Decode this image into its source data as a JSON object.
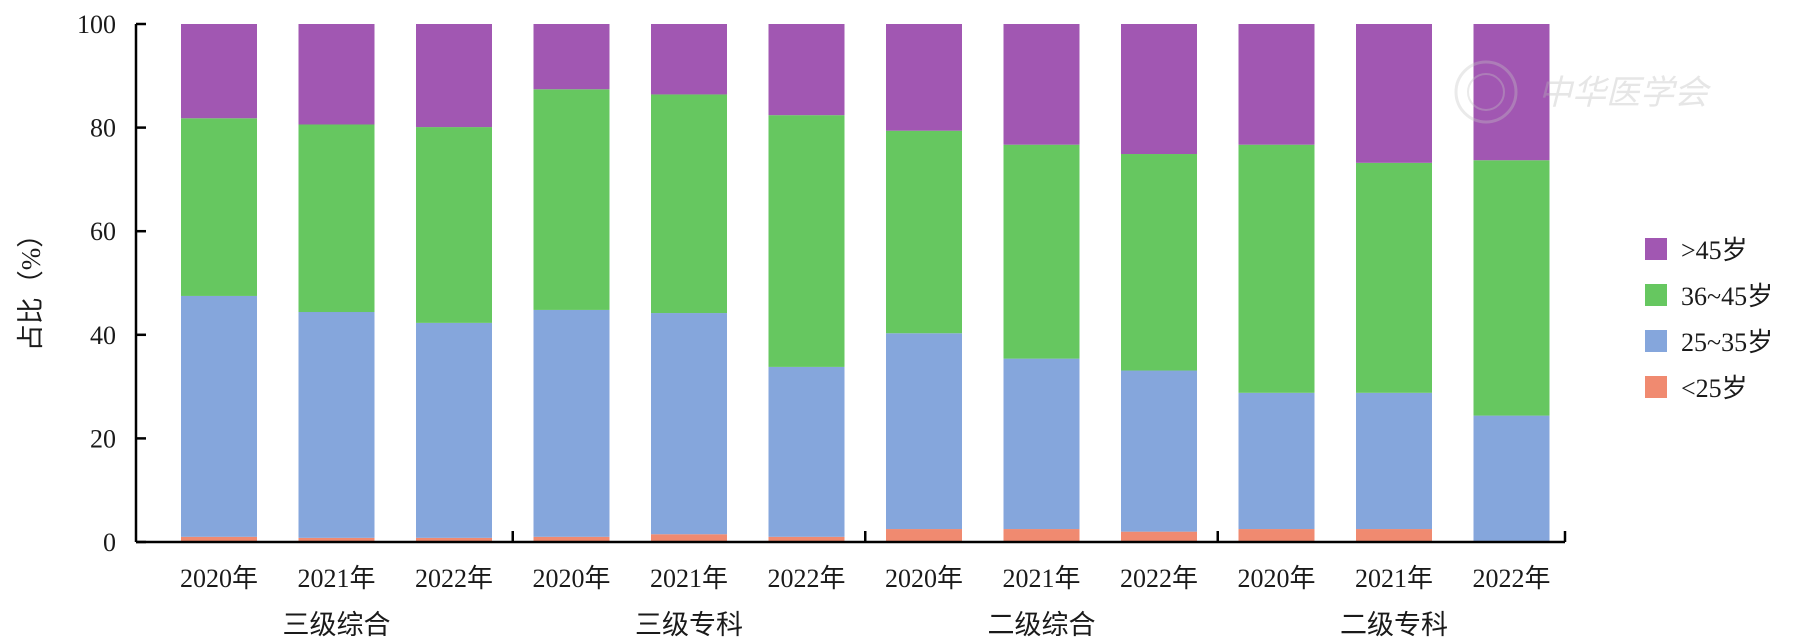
{
  "chart_data": {
    "type": "bar",
    "stacked": true,
    "ylabel": "占比（%）",
    "xlabel": "",
    "ylim": [
      0,
      100
    ],
    "yticks": [
      0,
      20,
      40,
      60,
      80,
      100
    ],
    "legend_position": "right",
    "categories": [
      "2020年",
      "2021年",
      "2022年",
      "2020年",
      "2021年",
      "2022年",
      "2020年",
      "2021年",
      "2022年",
      "2020年",
      "2021年",
      "2022年"
    ],
    "groups": [
      {
        "label": "三级综合",
        "size": 3
      },
      {
        "label": "三级专科",
        "size": 3
      },
      {
        "label": "二级综合",
        "size": 3
      },
      {
        "label": "二级专科",
        "size": 3
      }
    ],
    "series": [
      {
        "name": "<25岁",
        "color": "#F08A70",
        "values": [
          1.0,
          0.8,
          0.8,
          1.0,
          1.5,
          1.0,
          2.5,
          2.5,
          2.0,
          2.5,
          2.5,
          0.2
        ]
      },
      {
        "name": "25~35岁",
        "color": "#85A6DC",
        "values": [
          46.5,
          43.6,
          41.5,
          43.8,
          42.7,
          32.8,
          37.8,
          32.9,
          31.1,
          26.3,
          26.3,
          24.2
        ]
      },
      {
        "name": "36~45岁",
        "color": "#66C760",
        "values": [
          34.3,
          36.2,
          37.8,
          42.6,
          42.2,
          48.6,
          39.1,
          41.3,
          41.8,
          47.9,
          44.4,
          49.3
        ]
      },
      {
        "name": ">45岁",
        "color": "#A157B2",
        "values": [
          18.2,
          19.4,
          19.9,
          12.6,
          13.6,
          17.6,
          20.6,
          23.3,
          25.1,
          23.3,
          26.8,
          26.3
        ]
      }
    ],
    "legend_labels": [
      ">45岁",
      "36~45岁",
      "25~35岁",
      "<25岁"
    ],
    "watermark": "中华医学会"
  }
}
